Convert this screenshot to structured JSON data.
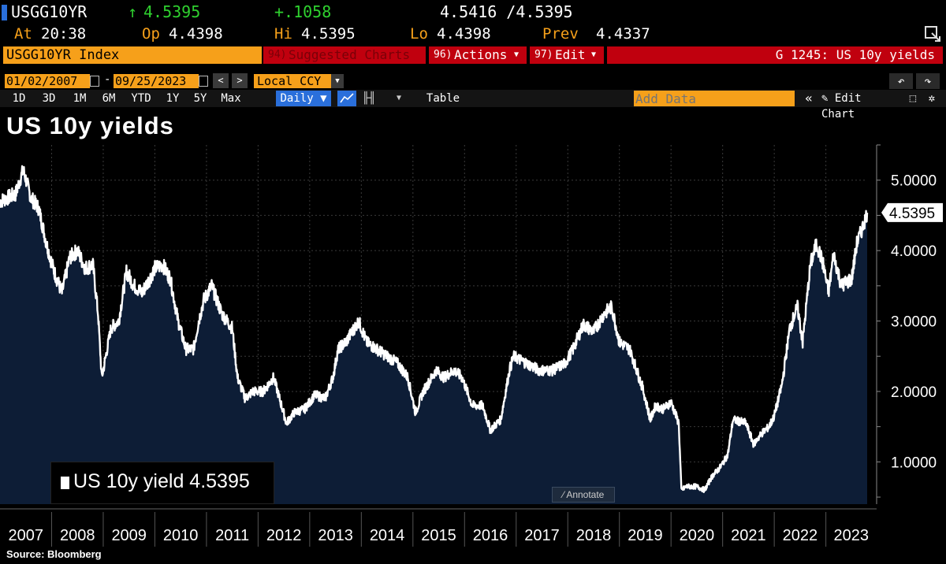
{
  "quote": {
    "ticker": "USGG10YR",
    "arrow": "↑",
    "last": "4.5395",
    "change": "+.1058",
    "bid_ask": "4.5416 /4.5395",
    "at_label": "At",
    "at_value": "20:38",
    "open_label": "Op",
    "open_value": "4.4398",
    "high_label": "Hi",
    "high_value": "4.5395",
    "low_label": "Lo",
    "low_value": "4.4398",
    "prev_label": "Prev",
    "prev_value": "4.4337"
  },
  "toolbar": {
    "security": "USGG10YR Index",
    "suggested_num": "94)",
    "suggested": "Suggested Charts",
    "actions_num": "96)",
    "actions": "Actions",
    "edit_num": "97)",
    "edit": "Edit",
    "title_right": "G 1245: US 10y yields"
  },
  "date_bar": {
    "start": "01/02/2007",
    "end": "09/25/2023",
    "currency": "Local CCY"
  },
  "range_bar": {
    "ranges": [
      "1D",
      "3D",
      "1M",
      "6M",
      "YTD",
      "1Y",
      "5Y",
      "Max"
    ],
    "frequency": "Daily",
    "table": "Table",
    "add_data_placeholder": "Add Data",
    "edit_chart": "Edit Chart"
  },
  "icons": {
    "refresh": "refresh-icon",
    "undo": "undo-icon",
    "redo": "redo-icon",
    "line": "line-chart-icon",
    "bar": "bar-chart-icon",
    "more": "more-icon",
    "collapse": "double-chevron-left-icon",
    "pencil": "pencil-icon",
    "settings": "settings-icon"
  },
  "chart_title": "US 10y yields",
  "legend_label": "US 10y yield 4.5395",
  "annotate": "Annotate",
  "source": "Source: Bloomberg",
  "colors": {
    "accent": "#f6a01a",
    "positive": "#2fd12f",
    "menu_red": "#c0000e",
    "area_fill": "#0d1d36",
    "line": "#ffffff"
  },
  "chart_data": {
    "type": "area",
    "title": "US 10y yields",
    "xlabel": "",
    "ylabel": "",
    "xlim": [
      "2007-01-02",
      "2023-09-25"
    ],
    "ylim": [
      0.4,
      5.5
    ],
    "x_ticks": [
      "2007",
      "2008",
      "2009",
      "2010",
      "2011",
      "2012",
      "2013",
      "2014",
      "2015",
      "2016",
      "2017",
      "2018",
      "2019",
      "2020",
      "2021",
      "2022",
      "2023"
    ],
    "y_ticks": [
      "1.0000",
      "2.0000",
      "3.0000",
      "4.0000",
      "5.0000"
    ],
    "last_value_label": "4.5395",
    "grid": true,
    "legend": "bottom-left",
    "series": [
      {
        "name": "US 10y yield",
        "x": [
          2007.0,
          2007.15,
          2007.3,
          2007.45,
          2007.6,
          2007.75,
          2007.9,
          2008.05,
          2008.2,
          2008.35,
          2008.5,
          2008.65,
          2008.8,
          2008.9,
          2008.97,
          2009.0,
          2009.15,
          2009.3,
          2009.45,
          2009.6,
          2009.75,
          2009.9,
          2010.0,
          2010.15,
          2010.3,
          2010.45,
          2010.6,
          2010.75,
          2010.85,
          2010.95,
          2011.1,
          2011.3,
          2011.5,
          2011.6,
          2011.75,
          2011.9,
          2012.1,
          2012.3,
          2012.55,
          2012.7,
          2012.9,
          2013.1,
          2013.3,
          2013.45,
          2013.55,
          2013.7,
          2013.95,
          2014.1,
          2014.3,
          2014.5,
          2014.7,
          2014.9,
          2015.05,
          2015.2,
          2015.45,
          2015.6,
          2015.8,
          2015.95,
          2016.15,
          2016.35,
          2016.5,
          2016.7,
          2016.87,
          2016.95,
          2017.2,
          2017.45,
          2017.7,
          2017.95,
          2018.1,
          2018.3,
          2018.5,
          2018.7,
          2018.85,
          2019.0,
          2019.2,
          2019.45,
          2019.6,
          2019.7,
          2019.85,
          2020.0,
          2020.15,
          2020.2,
          2020.3,
          2020.5,
          2020.65,
          2020.8,
          2020.95,
          2021.1,
          2021.2,
          2021.45,
          2021.6,
          2021.75,
          2021.9,
          2022.0,
          2022.15,
          2022.3,
          2022.45,
          2022.55,
          2022.7,
          2022.82,
          2022.95,
          2023.05,
          2023.15,
          2023.3,
          2023.5,
          2023.6,
          2023.7,
          2023.8
        ],
        "y": [
          4.7,
          4.75,
          4.8,
          5.15,
          4.75,
          4.6,
          4.1,
          3.7,
          3.4,
          3.9,
          4.0,
          3.75,
          3.8,
          3.1,
          2.2,
          2.3,
          2.9,
          3.0,
          3.7,
          3.5,
          3.4,
          3.6,
          3.75,
          3.8,
          3.6,
          3.0,
          2.6,
          2.6,
          3.0,
          3.3,
          3.5,
          3.1,
          2.9,
          2.2,
          1.9,
          2.0,
          2.0,
          2.2,
          1.55,
          1.7,
          1.75,
          1.95,
          1.9,
          2.2,
          2.6,
          2.7,
          3.0,
          2.7,
          2.6,
          2.5,
          2.4,
          2.2,
          1.7,
          2.0,
          2.3,
          2.2,
          2.3,
          2.2,
          1.8,
          1.8,
          1.45,
          1.6,
          2.3,
          2.5,
          2.4,
          2.3,
          2.3,
          2.4,
          2.6,
          2.95,
          2.85,
          3.1,
          3.2,
          2.7,
          2.6,
          2.05,
          1.6,
          1.8,
          1.75,
          1.85,
          1.55,
          0.6,
          0.65,
          0.65,
          0.6,
          0.8,
          0.92,
          1.1,
          1.6,
          1.55,
          1.25,
          1.4,
          1.5,
          1.65,
          2.1,
          2.9,
          3.2,
          2.7,
          3.8,
          4.1,
          3.8,
          3.4,
          3.95,
          3.5,
          3.6,
          4.1,
          4.3,
          4.5395
        ]
      }
    ]
  }
}
